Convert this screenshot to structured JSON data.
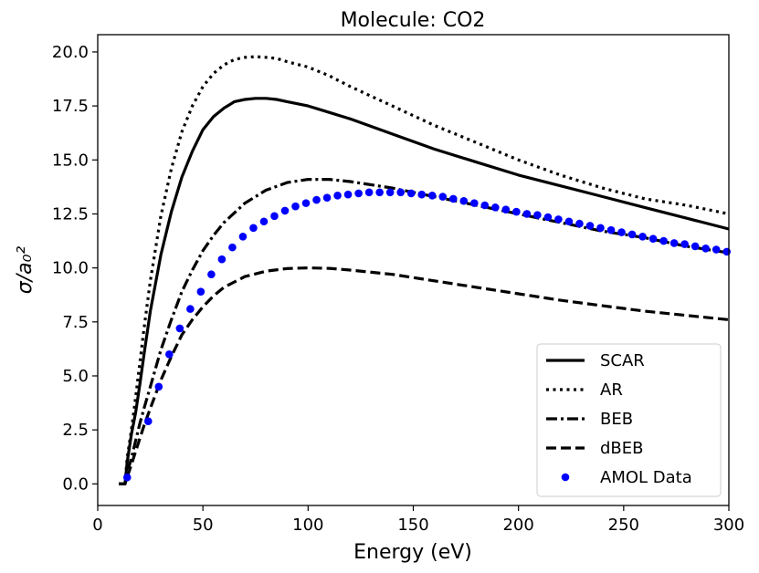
{
  "chart_data": {
    "type": "line",
    "title": "Molecule: CO2",
    "xlabel": "Energy (eV)",
    "ylabel": "σ/a₀²",
    "xlim": [
      0,
      300
    ],
    "ylim": [
      -1,
      20.8
    ],
    "x_ticks": [
      0,
      50,
      100,
      150,
      200,
      250,
      300
    ],
    "y_ticks": [
      0.0,
      2.5,
      5.0,
      7.5,
      10.0,
      12.5,
      15.0,
      17.5,
      20.0
    ],
    "x_tick_labels": [
      "0",
      "50",
      "100",
      "150",
      "200",
      "250",
      "300"
    ],
    "y_tick_labels": [
      "0.0",
      "2.5",
      "5.0",
      "7.5",
      "10.0",
      "12.5",
      "15.0",
      "17.5",
      "20.0"
    ],
    "grid": false,
    "legend_position": "lower-right",
    "series": [
      {
        "name": "SCAR",
        "style": "solid",
        "color": "#000000",
        "x": [
          10,
          13,
          14,
          16,
          18,
          20,
          22,
          25,
          30,
          35,
          40,
          45,
          50,
          55,
          60,
          65,
          70,
          75,
          80,
          85,
          90,
          100,
          110,
          120,
          140,
          160,
          180,
          200,
          220,
          240,
          260,
          280,
          300
        ],
        "y": [
          0.0,
          0.0,
          1.0,
          2.3,
          3.3,
          4.6,
          6.0,
          8.0,
          10.6,
          12.6,
          14.2,
          15.4,
          16.4,
          17.0,
          17.4,
          17.7,
          17.8,
          17.85,
          17.85,
          17.8,
          17.7,
          17.5,
          17.2,
          16.9,
          16.2,
          15.5,
          14.9,
          14.3,
          13.8,
          13.3,
          12.8,
          12.3,
          11.8
        ]
      },
      {
        "name": "AR",
        "style": "dotted",
        "color": "#000000",
        "x": [
          10,
          13,
          14,
          16,
          18,
          20,
          22,
          25,
          30,
          35,
          40,
          45,
          50,
          55,
          60,
          65,
          70,
          75,
          80,
          85,
          90,
          100,
          110,
          120,
          140,
          160,
          180,
          200,
          220,
          240,
          260,
          280,
          300
        ],
        "y": [
          0.0,
          0.0,
          1.2,
          2.5,
          4.0,
          5.6,
          7.2,
          9.4,
          12.4,
          14.6,
          16.3,
          17.5,
          18.4,
          19.0,
          19.4,
          19.65,
          19.75,
          19.78,
          19.75,
          19.7,
          19.55,
          19.3,
          18.9,
          18.4,
          17.5,
          16.6,
          15.8,
          15.0,
          14.3,
          13.7,
          13.2,
          12.9,
          12.5
        ]
      },
      {
        "name": "BEB",
        "style": "dashdot",
        "color": "#000000",
        "x": [
          10,
          13,
          14,
          16,
          18,
          20,
          22,
          25,
          30,
          35,
          40,
          45,
          50,
          55,
          60,
          70,
          80,
          90,
          100,
          110,
          120,
          140,
          160,
          180,
          200,
          220,
          240,
          260,
          280,
          300
        ],
        "y": [
          0.0,
          0.0,
          0.5,
          1.2,
          2.0,
          2.8,
          3.5,
          4.5,
          6.2,
          7.6,
          8.9,
          9.9,
          10.8,
          11.5,
          12.1,
          13.0,
          13.6,
          13.95,
          14.1,
          14.1,
          14.0,
          13.7,
          13.3,
          12.9,
          12.5,
          12.1,
          11.7,
          11.4,
          11.0,
          10.7
        ]
      },
      {
        "name": "dBEB",
        "style": "dashed",
        "color": "#000000",
        "x": [
          10,
          13,
          14,
          16,
          18,
          20,
          22,
          25,
          30,
          35,
          40,
          45,
          50,
          55,
          60,
          70,
          80,
          90,
          100,
          110,
          120,
          140,
          160,
          180,
          200,
          220,
          240,
          260,
          280,
          300
        ],
        "y": [
          0.0,
          0.0,
          0.3,
          0.9,
          1.5,
          2.1,
          2.7,
          3.5,
          4.8,
          5.9,
          6.9,
          7.6,
          8.2,
          8.7,
          9.1,
          9.6,
          9.85,
          9.97,
          10.0,
          9.98,
          9.9,
          9.7,
          9.4,
          9.1,
          8.8,
          8.5,
          8.25,
          8.0,
          7.8,
          7.6
        ]
      },
      {
        "name": "AMOL Data",
        "style": "markers",
        "color": "#0000ff",
        "x": [
          14,
          24,
          29,
          34,
          39,
          44,
          49,
          54,
          59,
          64,
          69,
          74,
          79,
          84,
          89,
          94,
          99,
          104,
          109,
          114,
          119,
          124,
          129,
          134,
          139,
          144,
          149,
          154,
          159,
          164,
          169,
          174,
          179,
          184,
          189,
          194,
          199,
          204,
          209,
          214,
          219,
          224,
          229,
          234,
          239,
          244,
          249,
          254,
          259,
          264,
          269,
          274,
          279,
          284,
          289,
          294,
          299
        ],
        "y": [
          0.3,
          2.9,
          4.5,
          6.0,
          7.2,
          8.1,
          8.9,
          9.7,
          10.4,
          10.95,
          11.45,
          11.85,
          12.15,
          12.4,
          12.65,
          12.85,
          13.0,
          13.15,
          13.25,
          13.35,
          13.4,
          13.45,
          13.5,
          13.5,
          13.5,
          13.5,
          13.45,
          13.4,
          13.35,
          13.3,
          13.2,
          13.1,
          13.0,
          12.9,
          12.8,
          12.7,
          12.6,
          12.5,
          12.45,
          12.35,
          12.25,
          12.15,
          12.05,
          11.95,
          11.85,
          11.75,
          11.65,
          11.55,
          11.45,
          11.35,
          11.25,
          11.15,
          11.1,
          11.0,
          10.9,
          10.85,
          10.75
        ]
      }
    ]
  }
}
